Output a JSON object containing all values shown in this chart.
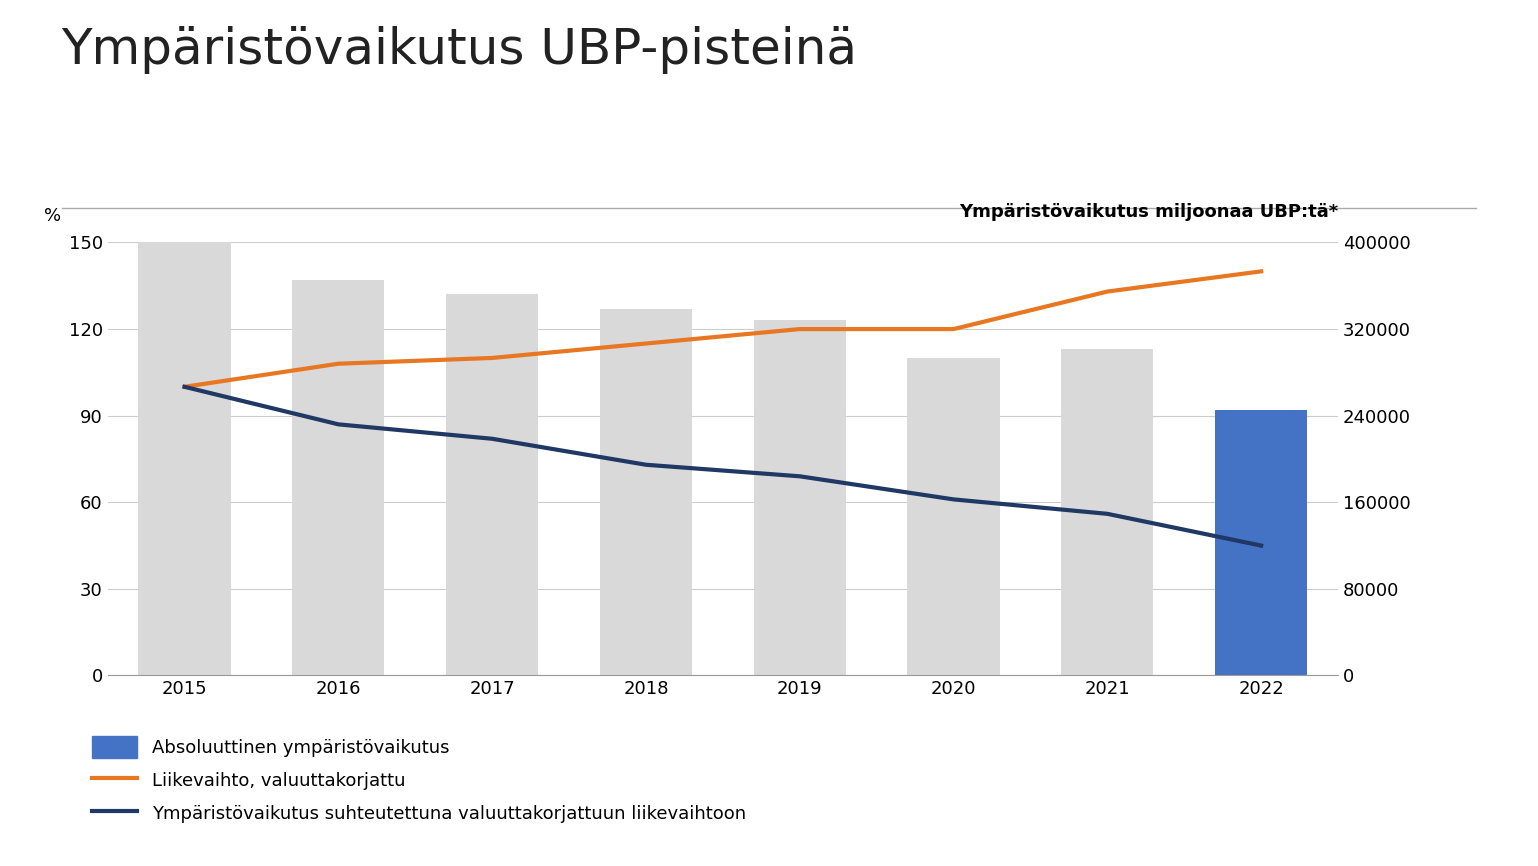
{
  "title": "Ympäristövaikutus UBP-pisteinä",
  "years": [
    2015,
    2016,
    2017,
    2018,
    2019,
    2020,
    2021,
    2022
  ],
  "bar_values_pct": [
    150,
    137,
    132,
    127,
    123,
    110,
    113,
    92
  ],
  "bar_colors": [
    "#d9d9d9",
    "#d9d9d9",
    "#d9d9d9",
    "#d9d9d9",
    "#d9d9d9",
    "#d9d9d9",
    "#d9d9d9",
    "#4472c4"
  ],
  "orange_line": [
    100,
    108,
    110,
    115,
    120,
    120,
    133,
    140
  ],
  "dark_line": [
    100,
    87,
    82,
    73,
    69,
    61,
    56,
    45
  ],
  "left_ylim": [
    0,
    150
  ],
  "left_yticks": [
    0,
    30,
    60,
    90,
    120,
    150
  ],
  "right_ylim": [
    0,
    400000
  ],
  "right_yticks": [
    0,
    80000,
    160000,
    240000,
    320000,
    400000
  ],
  "ylabel_left": "%",
  "ylabel_right": "Ympäristövaikutus miljoonaa UBP:tä*",
  "orange_color": "#e87722",
  "dark_color": "#1f3864",
  "bar_gray_color": "#d9d9d9",
  "bar_blue_color": "#4472c4",
  "legend_labels": [
    "Absoluuttinen ympäristövaikutus",
    "Liikevaihto, valuuttakorjattu",
    "Ympäristövaikutus suhteutettuna valuuttakorjattuun liikevaihtoon"
  ],
  "background_color": "#ffffff",
  "title_fontsize": 36,
  "axis_fontsize": 13,
  "tick_fontsize": 13,
  "legend_fontsize": 13,
  "ylabel_right_fontsize": 13,
  "line_width": 3.0,
  "bar_width": 0.6
}
